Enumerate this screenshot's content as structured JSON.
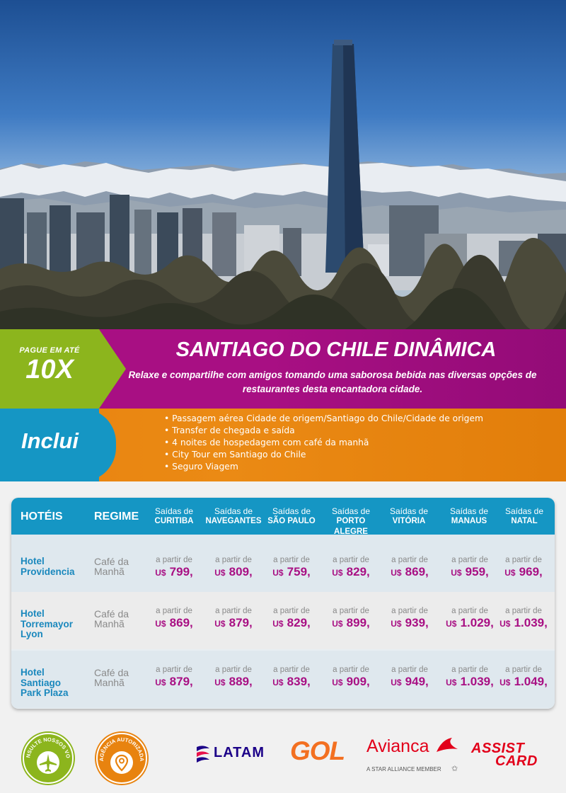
{
  "badge": {
    "small": "PAGUE EM ATÉ",
    "big": "10X"
  },
  "title": "SANTIAGO DO CHILE DINÂMICA",
  "subtitle": "Relaxe e compartilhe com amigos tomando uma saborosa bebida nas diversas opções de restaurantes desta encantadora cidade.",
  "includes": {
    "label": "Inclui",
    "items": [
      "Passagem aérea Cidade de origem/Santiago do Chile/Cidade de origem",
      "Transfer de chegada e saída",
      "4 noites de hospedagem com café da manhã",
      "City Tour em Santiago do Chile",
      "Seguro Viagem"
    ]
  },
  "table": {
    "headers": {
      "hotel": "HOTÉIS",
      "regime": "REGIME",
      "cities": [
        {
          "top": "Saídas de",
          "bottom": "CURITIBA"
        },
        {
          "top": "Saídas de",
          "bottom": "NAVEGANTES"
        },
        {
          "top": "Saídas de",
          "bottom": "SÃO PAULO"
        },
        {
          "top": "Saídas de",
          "bottom": "PORTO ALEGRE"
        },
        {
          "top": "Saídas de",
          "bottom": "VITÓRIA"
        },
        {
          "top": "Saídas de",
          "bottom": "MANAUS"
        },
        {
          "top": "Saídas de",
          "bottom": "NATAL"
        }
      ]
    },
    "price_prefix": "a partir de",
    "currency": "U$",
    "rows": [
      {
        "hotel": [
          "Hotel",
          "Providencia"
        ],
        "regime": [
          "Café da",
          "Manhã"
        ],
        "prices": [
          "799,",
          "809,",
          "759,",
          "829,",
          "869,",
          "959,",
          "969,"
        ]
      },
      {
        "hotel": [
          "Hotel",
          "Torremayor",
          "Lyon"
        ],
        "regime": [
          "Café da",
          "Manhã"
        ],
        "prices": [
          "869,",
          "879,",
          "829,",
          "899,",
          "939,",
          "1.029,",
          "1.039,"
        ]
      },
      {
        "hotel": [
          "Hotel",
          "Santiago",
          "Park Plaza"
        ],
        "regime": [
          "Café da",
          "Manhã"
        ],
        "prices": [
          "879,",
          "889,",
          "839,",
          "909,",
          "949,",
          "1.039,",
          "1.049,"
        ]
      }
    ]
  },
  "footer": {
    "badges": [
      {
        "text": "CONSULTE NOSSOS VOOS",
        "icon": "airplane-icon",
        "color": "#8cb51d"
      },
      {
        "text": "AGÊNCIA AUTORIZADA",
        "icon": "location-pin-icon",
        "color": "#e8830f"
      }
    ],
    "logos": {
      "latam": "LATAM",
      "gol": "GOL",
      "avianca": "Avianca",
      "avianca_tag": "A STAR ALLIANCE MEMBER",
      "assist_1": "ASSIST",
      "assist_2": "CARD"
    }
  },
  "colors": {
    "magenta": "#a80f83",
    "green": "#8cb51d",
    "blue": "#1596c4",
    "orange": "#e8830f"
  }
}
